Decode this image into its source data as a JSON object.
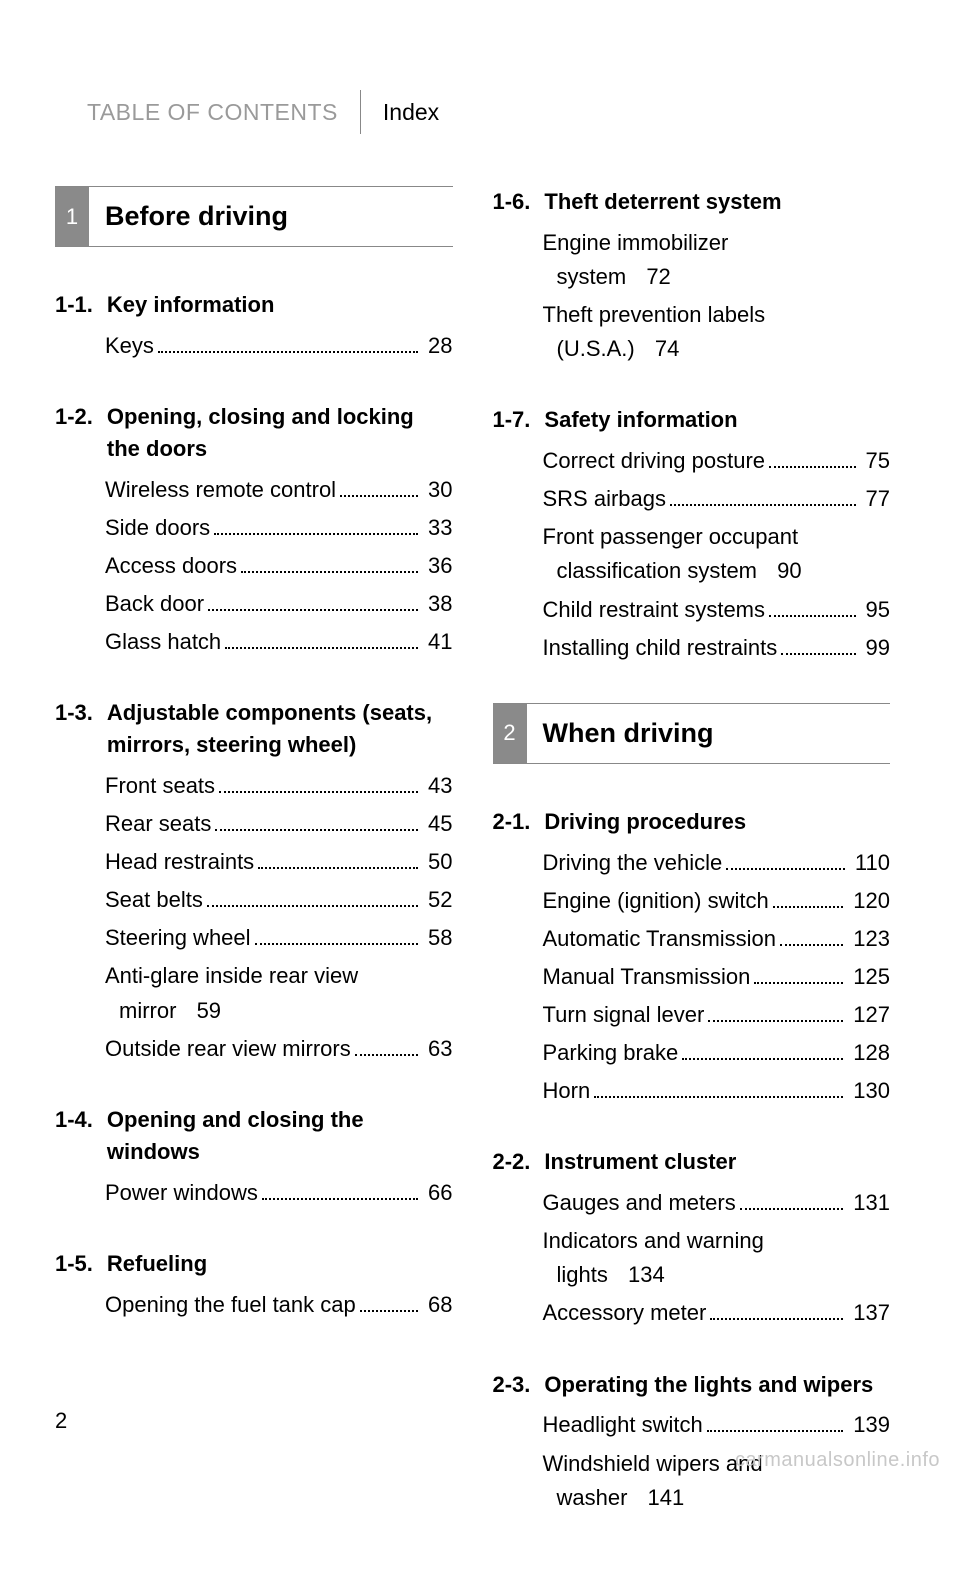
{
  "header": {
    "left": "TABLE OF CONTENTS",
    "right": "Index"
  },
  "page_number": "2",
  "watermark": "carmanualsonline.info",
  "colors": {
    "text": "#000000",
    "muted": "#9a9a9a",
    "chapter_num_bg": "#8a8a8a",
    "chapter_num_fg": "#ffffff",
    "rule": "#888888",
    "watermark": "#c8c8c8",
    "background": "#ffffff"
  },
  "chapters": [
    {
      "num": "1",
      "title": "Before driving"
    },
    {
      "num": "2",
      "title": "When driving"
    }
  ],
  "sections": {
    "s11": {
      "num": "1-1.",
      "title": "Key information"
    },
    "s12": {
      "num": "1-2.",
      "title": "Opening, closing and locking the doors"
    },
    "s13": {
      "num": "1-3.",
      "title": "Adjustable components (seats, mirrors, steering wheel)"
    },
    "s14": {
      "num": "1-4.",
      "title": "Opening and closing the windows"
    },
    "s15": {
      "num": "1-5.",
      "title": "Refueling"
    },
    "s16": {
      "num": "1-6.",
      "title": "Theft deterrent system"
    },
    "s17": {
      "num": "1-7.",
      "title": "Safety information"
    },
    "s21": {
      "num": "2-1.",
      "title": "Driving procedures"
    },
    "s22": {
      "num": "2-2.",
      "title": "Instrument cluster"
    },
    "s23": {
      "num": "2-3.",
      "title": "Operating the lights and wipers"
    }
  },
  "entries": {
    "keys": {
      "label": "Keys",
      "page": "28"
    },
    "wireless_remote": {
      "label": "Wireless remote control ",
      "page": "30"
    },
    "side_doors": {
      "label": "Side doors",
      "page": "33"
    },
    "access_doors": {
      "label": "Access doors",
      "page": "36"
    },
    "back_door": {
      "label": "Back door",
      "page": "38"
    },
    "glass_hatch": {
      "label": "Glass hatch",
      "page": "41"
    },
    "front_seats": {
      "label": "Front seats",
      "page": "43"
    },
    "rear_seats": {
      "label": "Rear seats",
      "page": "45"
    },
    "head_restraints": {
      "label": "Head restraints",
      "page": "50"
    },
    "seat_belts": {
      "label": "Seat belts",
      "page": "52"
    },
    "steering_wheel": {
      "label": "Steering wheel",
      "page": "58"
    },
    "anti_glare": {
      "label1": "Anti-glare inside rear view",
      "label2": "mirror",
      "page": "59"
    },
    "outside_mirrors": {
      "label": "Outside rear view mirrors",
      "page": "63"
    },
    "power_windows": {
      "label": "Power windows",
      "page": "66"
    },
    "fuel_cap": {
      "label": "Opening the fuel tank cap",
      "page": "68"
    },
    "immobilizer": {
      "label1": "Engine immobilizer",
      "label2": "system",
      "page": "72"
    },
    "theft_labels": {
      "label1": "Theft prevention labels",
      "label2": "(U.S.A.)",
      "page": "74"
    },
    "posture": {
      "label": "Correct driving posture",
      "page": "75"
    },
    "srs": {
      "label": "SRS airbags",
      "page": "77"
    },
    "occupant": {
      "label1": "Front passenger occupant",
      "label2": "classification system",
      "page": "90"
    },
    "child_restraint": {
      "label": "Child restraint systems",
      "page": "95"
    },
    "install_child": {
      "label": "Installing child restraints",
      "page": "99"
    },
    "driving_vehicle": {
      "label": "Driving the vehicle",
      "page": "110"
    },
    "ignition": {
      "label": "Engine (ignition) switch",
      "page": "120"
    },
    "auto_trans": {
      "label": "Automatic Transmission",
      "page": "123"
    },
    "manual_trans": {
      "label": "Manual Transmission",
      "page": "125"
    },
    "turn_signal": {
      "label": "Turn signal lever",
      "page": "127"
    },
    "parking_brake": {
      "label": "Parking brake",
      "page": "128"
    },
    "horn": {
      "label": "Horn",
      "page": "130"
    },
    "gauges": {
      "label": "Gauges and meters",
      "page": "131"
    },
    "indicators": {
      "label1": "Indicators and warning",
      "label2": "lights",
      "page": "134"
    },
    "accessory_meter": {
      "label": "Accessory meter",
      "page": "137"
    },
    "headlight": {
      "label": "Headlight switch",
      "page": "139"
    },
    "wipers": {
      "label1": "Windshield wipers and",
      "label2": "washer",
      "page": "141"
    }
  }
}
